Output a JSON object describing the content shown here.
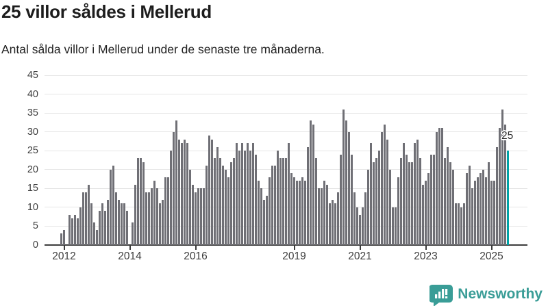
{
  "title": "25 villor såldes i Mellerud",
  "subtitle": "Antal sålda villor i Mellerud under de senaste tre månaderna.",
  "annotation": {
    "label": "25"
  },
  "logo": {
    "text": "Newsworthy"
  },
  "colors": {
    "bar": "#6f6f75",
    "highlight": "#00a3a6",
    "grid": "#e5e5e5",
    "axis": "#3c3c3c",
    "title_text": "#1d1d1d",
    "tick_text": "#3d3d3d",
    "logo": "#3a9d97"
  },
  "chart_data": {
    "type": "bar",
    "title": "25 villor såldes i Mellerud",
    "subtitle": "Antal sålda villor i Mellerud under de senaste tre månaderna.",
    "unit": "sålda villor (rullande 3 månader)",
    "frequency": "monthly",
    "x_start": "2011-12",
    "ylim": [
      0,
      45
    ],
    "grid": true,
    "y_ticks": [
      0,
      5,
      10,
      15,
      20,
      25,
      30,
      35,
      40,
      45
    ],
    "x_tick_labels": [
      "2012",
      "2014",
      "2016",
      "2019",
      "2021",
      "2023",
      "2025"
    ],
    "x_tick_indices": [
      1,
      25,
      49,
      85,
      109,
      133,
      157
    ],
    "highlight_last": true,
    "last_value_label": "25",
    "values": [
      3,
      4,
      0,
      8,
      7,
      8,
      7,
      10,
      14,
      14,
      16,
      11,
      6,
      4,
      9,
      11,
      9,
      12,
      20,
      21,
      14,
      12,
      11,
      11,
      9,
      0,
      6,
      16,
      23,
      23,
      22,
      14,
      14,
      15,
      17,
      15,
      11,
      12,
      18,
      18,
      25,
      30,
      33,
      28,
      27,
      28,
      27,
      20,
      16,
      14,
      15,
      15,
      15,
      21,
      29,
      28,
      23,
      26,
      23,
      21,
      20,
      18,
      22,
      23,
      27,
      25,
      27,
      25,
      27,
      25,
      27,
      24,
      17,
      15,
      12,
      13,
      18,
      21,
      21,
      25,
      23,
      23,
      23,
      27,
      19,
      18,
      17,
      17,
      18,
      17,
      26,
      33,
      32,
      23,
      15,
      15,
      17,
      16,
      11,
      12,
      11,
      14,
      24,
      36,
      33,
      30,
      24,
      14,
      10,
      8,
      10,
      14,
      20,
      27,
      22,
      23,
      25,
      30,
      32,
      28,
      20,
      10,
      10,
      18,
      23,
      27,
      24,
      22,
      22,
      27,
      28,
      23,
      16,
      17,
      19,
      24,
      24,
      30,
      31,
      31,
      23,
      26,
      22,
      20,
      11,
      11,
      10,
      11,
      19,
      21,
      15,
      17,
      18,
      19,
      20,
      18,
      22,
      17,
      17,
      26,
      31,
      36,
      32,
      25
    ]
  }
}
